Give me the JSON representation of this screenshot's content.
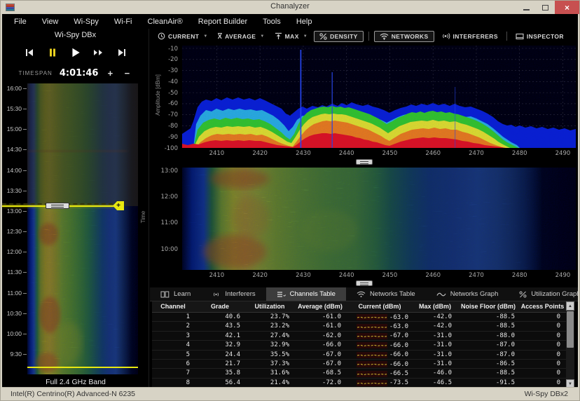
{
  "window": {
    "title": "Chanalyzer",
    "minimize": "–",
    "maximize": "",
    "close": "×"
  },
  "menu": {
    "items": [
      "File",
      "View",
      "Wi-Spy",
      "Wi-Fi",
      "CleanAir®",
      "Report Builder",
      "Tools",
      "Help"
    ]
  },
  "left_panel": {
    "device_label": "Wi-Spy DBx",
    "timespan_label": "TIMESPAN",
    "timespan_value": "4:01:46",
    "timespan_increase": "+",
    "timespan_decrease": "−",
    "time_labels": [
      "16:00",
      "15:30",
      "15:00",
      "14:30",
      "14:00",
      "13:30",
      "13:00",
      "12:30",
      "12:00",
      "11:30",
      "11:00",
      "10:30",
      "10:00",
      "9:30"
    ],
    "band_label": "Full 2.4 GHz Band",
    "selection_handle": "+"
  },
  "toolbar": {
    "current": "CURRENT",
    "average": "AVERAGE",
    "max": "MAX",
    "density": "DENSITY",
    "networks": "NETWORKS",
    "interferers": "INTERFERERS",
    "inspector": "INSPECTOR"
  },
  "density_plot": {
    "ylabel": "Amplitude [dBm]",
    "yticks": [
      "-10",
      "-20",
      "-30",
      "-40",
      "-50",
      "-60",
      "-70",
      "-80",
      "-90",
      "-100"
    ],
    "xticks": [
      "2410",
      "2420",
      "2430",
      "2440",
      "2450",
      "2460",
      "2470",
      "2480",
      "2490"
    ]
  },
  "waterfall_plot": {
    "ylabel": "Time",
    "yticks": [
      "13:00",
      "12:00",
      "11:00",
      "10:00"
    ],
    "xticks": [
      "2410",
      "2420",
      "2430",
      "2440",
      "2450",
      "2460",
      "2470",
      "2480",
      "2490"
    ]
  },
  "tabs": [
    {
      "label": "Learn",
      "icon": "book",
      "active": false
    },
    {
      "label": "Interferers",
      "icon": "interferer",
      "active": false
    },
    {
      "label": "Channels Table",
      "icon": "list",
      "active": true
    },
    {
      "label": "Networks Table",
      "icon": "wifi",
      "active": false
    },
    {
      "label": "Networks Graph",
      "icon": "wave",
      "active": false
    },
    {
      "label": "Utilization Graph",
      "icon": "percent",
      "active": false
    }
  ],
  "channels_table": {
    "columns": [
      "Channel",
      "Grade",
      "Utilization",
      "Average (dBm)",
      "Current (dBm)",
      "Max (dBm)",
      "Noise Floor (dBm)",
      "Access Points"
    ],
    "rows": [
      {
        "channel": "1",
        "grade": "40.6",
        "utilization": "23.7%",
        "average": "-61.0",
        "current": "-63.0",
        "max": "-42.0",
        "noise_floor": "-88.5",
        "access_points": "0"
      },
      {
        "channel": "2",
        "grade": "43.5",
        "utilization": "23.2%",
        "average": "-61.0",
        "current": "-63.0",
        "max": "-42.0",
        "noise_floor": "-88.5",
        "access_points": "0"
      },
      {
        "channel": "3",
        "grade": "42.1",
        "utilization": "27.4%",
        "average": "-62.0",
        "current": "-67.0",
        "max": "-31.0",
        "noise_floor": "-88.0",
        "access_points": "0"
      },
      {
        "channel": "4",
        "grade": "32.9",
        "utilization": "32.9%",
        "average": "-66.0",
        "current": "-66.0",
        "max": "-31.0",
        "noise_floor": "-87.0",
        "access_points": "0"
      },
      {
        "channel": "5",
        "grade": "24.4",
        "utilization": "35.5%",
        "average": "-67.0",
        "current": "-66.0",
        "max": "-31.0",
        "noise_floor": "-87.0",
        "access_points": "0"
      },
      {
        "channel": "6",
        "grade": "21.7",
        "utilization": "37.3%",
        "average": "-67.0",
        "current": "-66.0",
        "max": "-31.0",
        "noise_floor": "-86.5",
        "access_points": "0"
      },
      {
        "channel": "7",
        "grade": "35.8",
        "utilization": "31.6%",
        "average": "-68.5",
        "current": "-66.5",
        "max": "-46.0",
        "noise_floor": "-88.5",
        "access_points": "0"
      },
      {
        "channel": "8",
        "grade": "56.4",
        "utilization": "21.4%",
        "average": "-72.0",
        "current": "-73.5",
        "max": "-46.5",
        "noise_floor": "-91.5",
        "access_points": "0"
      }
    ]
  },
  "status_bar": {
    "left": "Intel(R) Centrino(R) Advanced-N 6235",
    "right": "Wi-Spy DBx2"
  }
}
